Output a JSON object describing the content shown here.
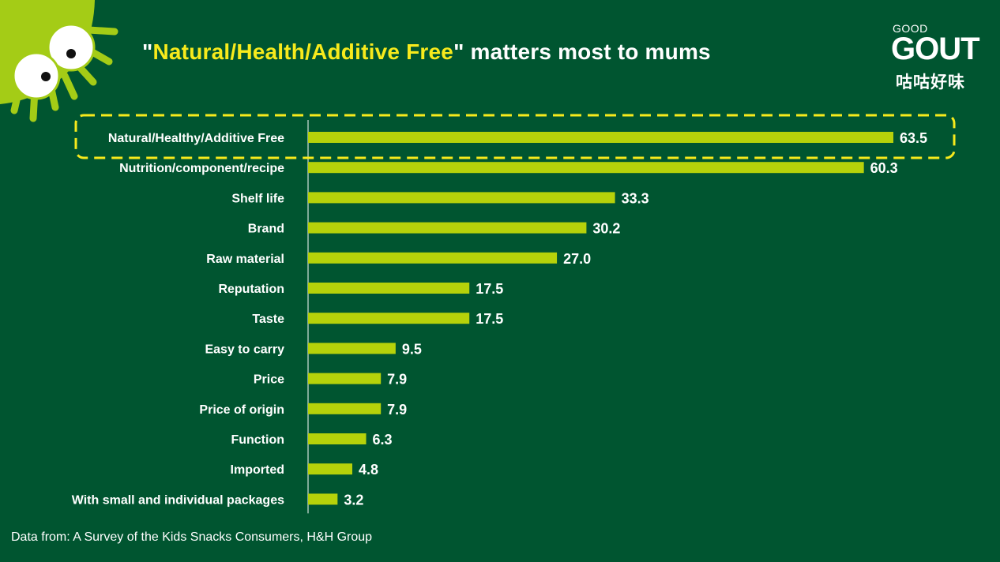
{
  "title": {
    "quote_open": "\"",
    "highlight": "Natural/Health/Additive Free",
    "quote_close": "\"",
    "rest": " matters most to mums"
  },
  "logo": {
    "top": "GOOD",
    "main": "GOUT",
    "chinese": "咕咕好味"
  },
  "source": "Data from: A Survey of the Kids Snacks Consumers, H&H Group",
  "colors": {
    "background": "#005530",
    "bar": "#b6d20a",
    "highlight_text": "#f7ea1c",
    "callout_border": "#f7ea1c",
    "mascot": "#a4cc16"
  },
  "icons": [
    "mascot-eyes-icon"
  ],
  "chart_data": {
    "type": "bar",
    "orientation": "horizontal",
    "categories": [
      "Natural/Healthy/Additive Free",
      "Nutrition/component/recipe",
      "Shelf life",
      "Brand",
      "Raw material",
      "Reputation",
      "Taste",
      "Easy to carry",
      "Price",
      "Price of origin",
      "Function",
      "Imported",
      "With small and individual packages"
    ],
    "values": [
      63.5,
      60.3,
      33.3,
      30.2,
      27.0,
      17.5,
      17.5,
      9.5,
      7.9,
      7.9,
      6.3,
      4.8,
      3.2
    ],
    "value_labels": [
      "63.5",
      "60.3",
      "33.3",
      "30.2",
      "27.0",
      "17.5",
      "17.5",
      "9.5",
      "7.9",
      "7.9",
      "6.3",
      "4.8",
      "3.2"
    ],
    "highlighted_category": "Natural/Healthy/Additive Free",
    "xlim": [
      0,
      63.5
    ],
    "grid": false,
    "legend": "none"
  }
}
